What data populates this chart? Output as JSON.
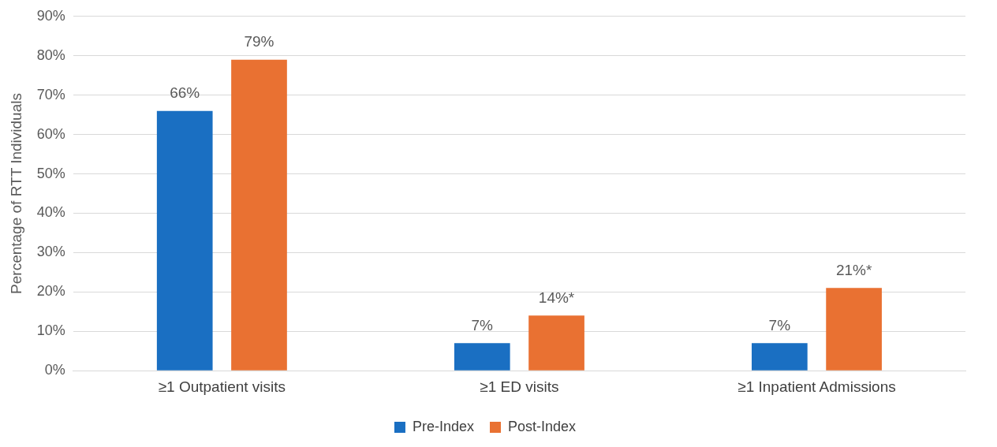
{
  "chart_data": {
    "type": "bar",
    "ylabel": "Percentage of RTT Individuals",
    "categories": [
      "≥1 Outpatient visits",
      "≥1 ED visits",
      "≥1 Inpatient Admissions"
    ],
    "series": [
      {
        "name": "Pre-Index",
        "color": "#1a6fc2",
        "values": [
          66,
          7,
          7
        ],
        "value_labels": [
          "66%",
          "7%",
          "7%"
        ]
      },
      {
        "name": "Post-Index",
        "color": "#e97132",
        "values": [
          79,
          14,
          21
        ],
        "value_labels": [
          "79%",
          "14%*",
          "21%*"
        ]
      }
    ],
    "ylim": [
      0,
      90
    ],
    "yticks": [
      {
        "value": 0,
        "label": "0%"
      },
      {
        "value": 10,
        "label": "10%"
      },
      {
        "value": 20,
        "label": "20%"
      },
      {
        "value": 30,
        "label": "30%"
      },
      {
        "value": 40,
        "label": "40%"
      },
      {
        "value": 50,
        "label": "50%"
      },
      {
        "value": 60,
        "label": "60%"
      },
      {
        "value": 70,
        "label": "70%"
      },
      {
        "value": 80,
        "label": "80%"
      },
      {
        "value": 90,
        "label": "90%"
      }
    ],
    "grid": "y",
    "legend": "bottom"
  }
}
